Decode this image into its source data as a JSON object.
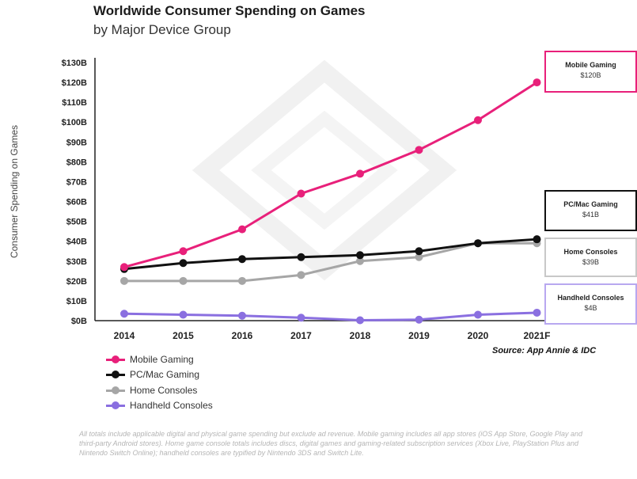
{
  "chart_data": {
    "type": "line",
    "title": "Worldwide Consumer Spending on Games",
    "subtitle": "by Major Device Group",
    "ylabel": "Consumer Spending on Games",
    "xlabel": "",
    "categories": [
      "2014",
      "2015",
      "2016",
      "2017",
      "2018",
      "2019",
      "2020",
      "2021F"
    ],
    "y_tick_labels": [
      "$0B",
      "$10B",
      "$20B",
      "$30B",
      "$40B",
      "$50B",
      "$60B",
      "$70B",
      "$80B",
      "$90B",
      "$100B",
      "$110B",
      "$120B",
      "$130B"
    ],
    "ylim": [
      0,
      130
    ],
    "grid": false,
    "legend_position": "bottom-left",
    "series": [
      {
        "name": "Mobile Gaming",
        "color": "#e8207a",
        "values": [
          27,
          35,
          46,
          64,
          74,
          86,
          101,
          120
        ]
      },
      {
        "name": "PC/Mac Gaming",
        "color": "#111111",
        "values": [
          26,
          29,
          31,
          32,
          33,
          35,
          39,
          41
        ]
      },
      {
        "name": "Home Consoles",
        "color": "#a6a6a6",
        "values": [
          20,
          20,
          20,
          23,
          30,
          32,
          39,
          39
        ]
      },
      {
        "name": "Handheld Consoles",
        "color": "#8a6fe0",
        "values": [
          3.5,
          3,
          2.5,
          1.5,
          0.2,
          0.5,
          3,
          4
        ]
      }
    ],
    "callouts": [
      {
        "label": "Mobile Gaming",
        "value": "$120B",
        "border": "#e8207a"
      },
      {
        "label": "PC/Mac Gaming",
        "value": "$41B",
        "border": "#111111"
      },
      {
        "label": "Home Consoles",
        "value": "$39B",
        "border": "#c8c8c8"
      },
      {
        "label": "Handheld Consoles",
        "value": "$4B",
        "border": "#b8a8f0"
      }
    ],
    "source": "Source: App Annie & IDC"
  },
  "footnote": "All totals include applicable digital and physical game spending but exclude ad revenue. Mobile gaming includes all app stores (iOS App Store, Google Play and third-party Android stores). Home game console totals includes discs, digital games and gaming-related subscription services (Xbox Live, PlayStation Plus and Nintendo Switch Online); handheld consoles are typified by Nintendo 3DS and Switch Lite."
}
